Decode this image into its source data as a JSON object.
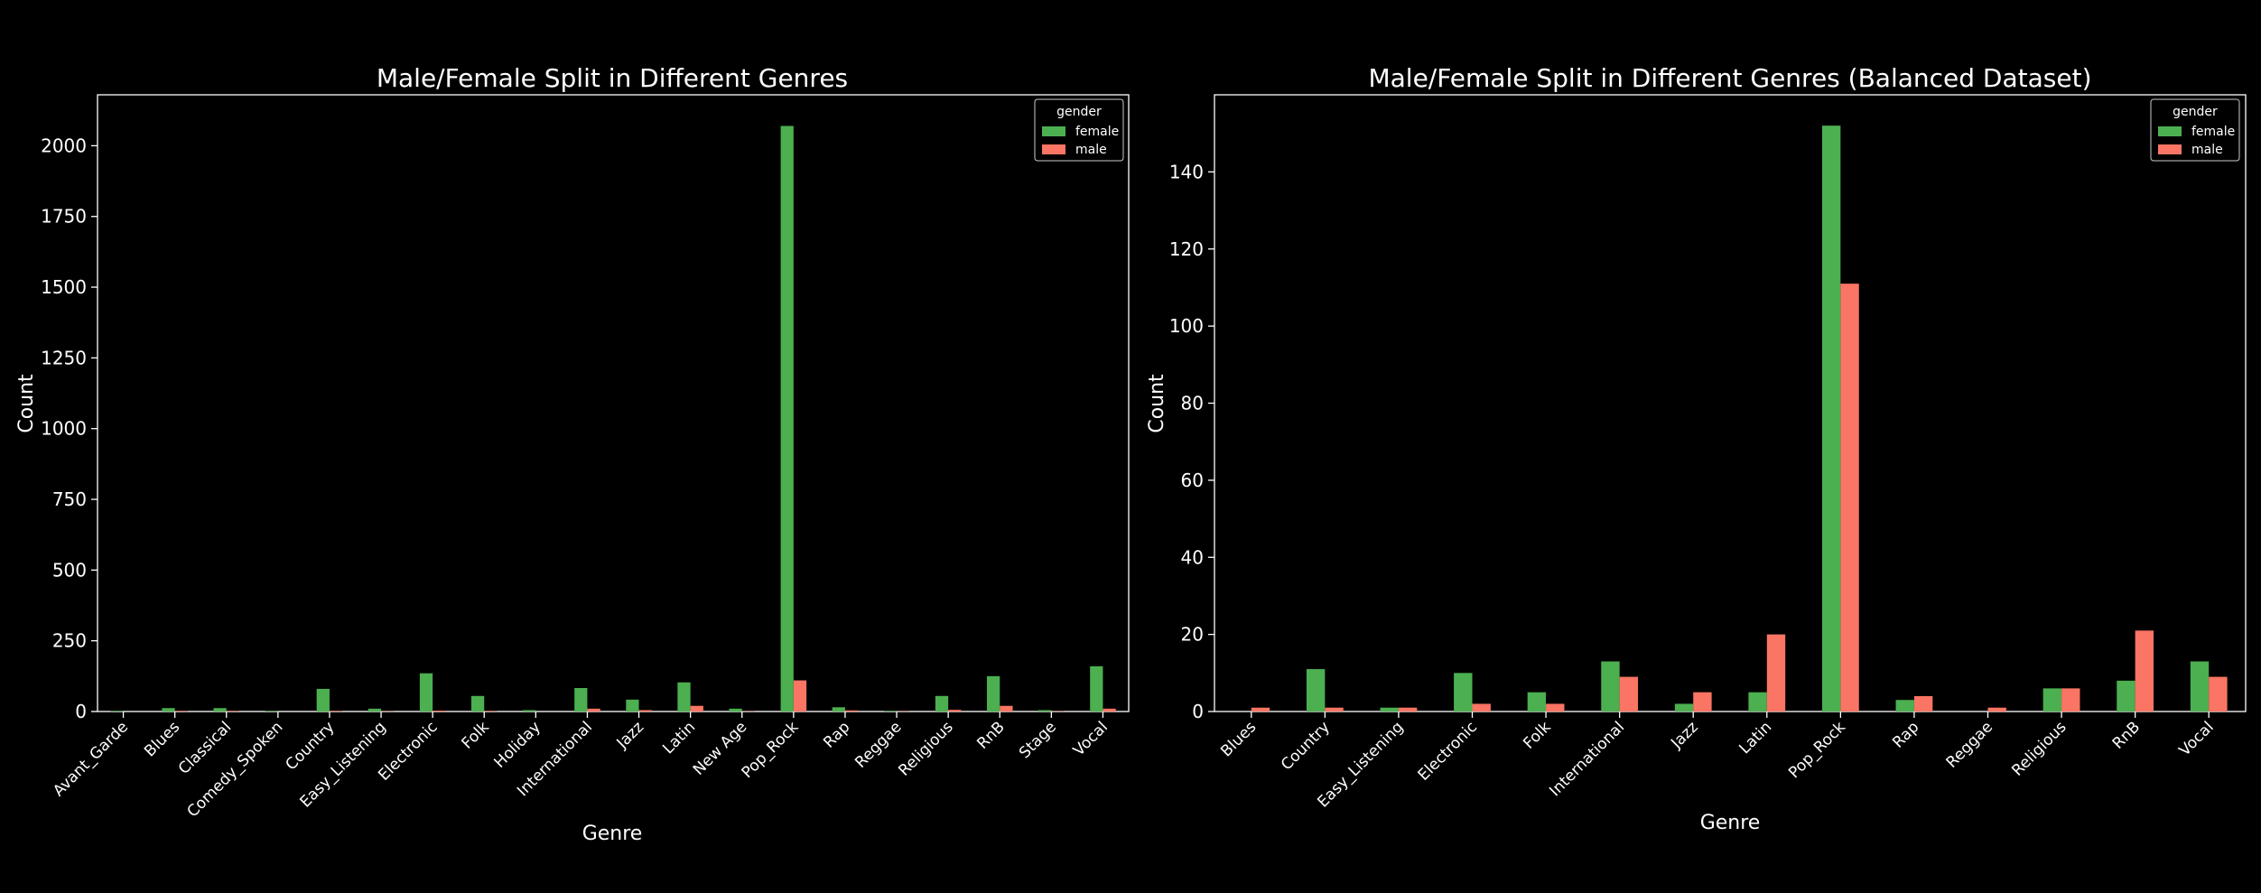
{
  "colors": {
    "female": "#4caf50",
    "male": "#fa7564",
    "background": "#000000",
    "text": "#ffffff",
    "axis": "#ffffff"
  },
  "chart_data": [
    {
      "type": "bar",
      "title": "Male/Female Split in Different Genres",
      "xlabel": "Genre",
      "ylabel": "Count",
      "ylim": [
        0,
        2180
      ],
      "yticks": [
        0,
        250,
        500,
        750,
        1000,
        1250,
        1500,
        1750,
        2000
      ],
      "ytick_labels": [
        "0",
        "250",
        "500",
        "750",
        "1000",
        "1250",
        "1500",
        "1750",
        "2000"
      ],
      "legend": {
        "title": "gender",
        "position": "top-right",
        "entries": [
          "female",
          "male"
        ]
      },
      "categories": [
        "Avant_Garde",
        "Blues",
        "Classical",
        "Comedy_Spoken",
        "Country",
        "Easy_Listening",
        "Electronic",
        "Folk",
        "Holiday",
        "International",
        "Jazz",
        "Latin",
        "New Age",
        "Pop_Rock",
        "Rap",
        "Reggae",
        "Religious",
        "RnB",
        "Stage",
        "Vocal"
      ],
      "series": [
        {
          "name": "female",
          "values": [
            2,
            12,
            12,
            2,
            80,
            10,
            135,
            55,
            5,
            83,
            42,
            103,
            10,
            2070,
            15,
            2,
            55,
            125,
            5,
            160
          ]
        },
        {
          "name": "male",
          "values": [
            0,
            2,
            2,
            0,
            2,
            1,
            3,
            2,
            0,
            10,
            5,
            20,
            1,
            110,
            4,
            1,
            6,
            20,
            1,
            10
          ]
        }
      ]
    },
    {
      "type": "bar",
      "title": "Male/Female Split in Different Genres (Balanced Dataset)",
      "xlabel": "Genre",
      "ylabel": "Count",
      "ylim": [
        0,
        160
      ],
      "yticks": [
        0,
        20,
        40,
        60,
        80,
        100,
        120,
        140
      ],
      "ytick_labels": [
        "0",
        "20",
        "40",
        "60",
        "80",
        "100",
        "120",
        "140"
      ],
      "legend": {
        "title": "gender",
        "position": "top-right",
        "entries": [
          "female",
          "male"
        ]
      },
      "categories": [
        "Blues",
        "Country",
        "Easy_Listening",
        "Electronic",
        "Folk",
        "International",
        "Jazz",
        "Latin",
        "Pop_Rock",
        "Rap",
        "Reggae",
        "Religious",
        "RnB",
        "Vocal"
      ],
      "series": [
        {
          "name": "female",
          "values": [
            0,
            11,
            1,
            10,
            5,
            13,
            2,
            5,
            152,
            3,
            0,
            6,
            8,
            13
          ]
        },
        {
          "name": "male",
          "values": [
            1,
            1,
            1,
            2,
            2,
            9,
            5,
            20,
            111,
            4,
            1,
            6,
            21,
            9
          ]
        }
      ]
    }
  ]
}
